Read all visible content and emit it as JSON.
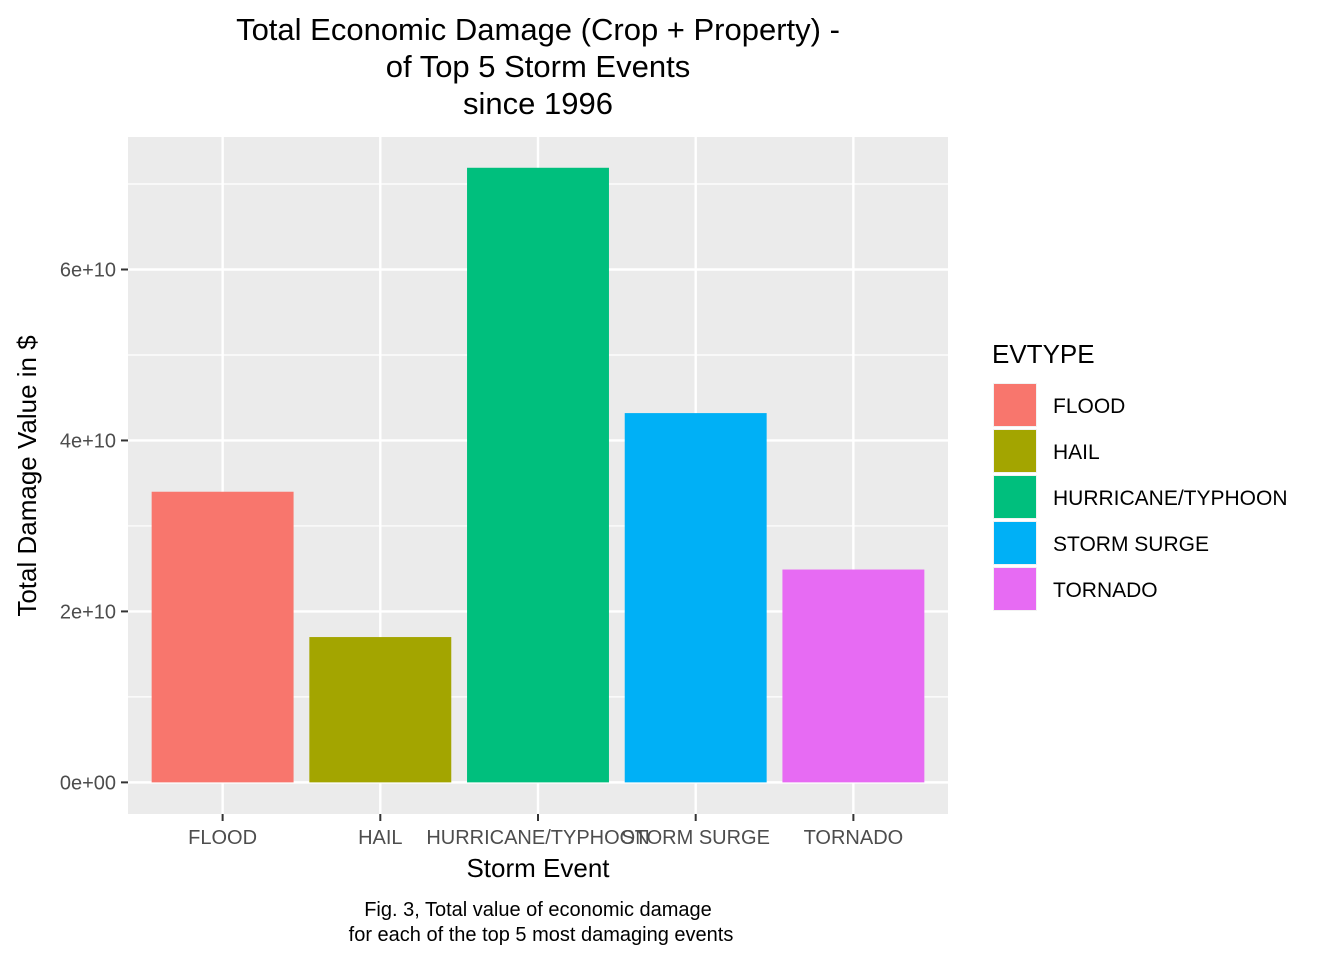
{
  "chart_data": {
    "type": "bar",
    "title_lines": [
      "Total Economic Damage (Crop + Property) -",
      "of Top 5 Storm Events",
      "since 1996"
    ],
    "xlabel": "Storm Event",
    "ylabel": "Total Damage Value in $",
    "categories": [
      "FLOOD",
      "HAIL",
      "HURRICANE/TYPHOON",
      "STORM SURGE",
      "TORNADO"
    ],
    "values": [
      34000000000,
      17000000000,
      71900000000,
      43200000000,
      24900000000
    ],
    "colors": [
      "#F8766D",
      "#A3A500",
      "#00BF7D",
      "#00B0F6",
      "#E76BF3"
    ],
    "ylim": [
      -3700000000,
      75500000000
    ],
    "y_ticks": [
      0,
      20000000000,
      40000000000,
      60000000000
    ],
    "y_tick_labels": [
      "0e+00",
      "2e+10",
      "4e+10",
      "6e+10"
    ],
    "grid": true,
    "panel_background": "#ebebeb",
    "legend": {
      "title": "EVTYPE",
      "placement": "right",
      "entries": [
        "FLOOD",
        "HAIL",
        "HURRICANE/TYPHOON",
        "STORM SURGE",
        "TORNADO"
      ]
    },
    "caption_lines": [
      "Fig. 3, Total value of economic damage",
      "for each of the top 5 most damaging events"
    ]
  }
}
